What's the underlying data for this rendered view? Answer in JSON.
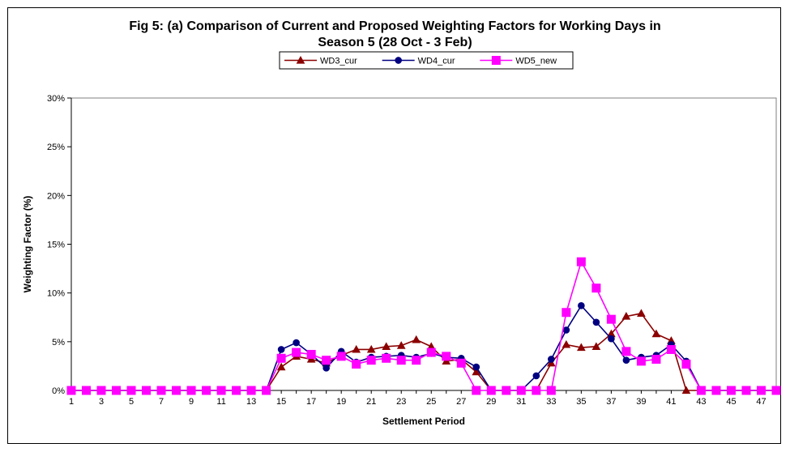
{
  "chart_data": {
    "type": "line",
    "title_lines": [
      "Fig 5: (a) Comparison of Current and Proposed Weighting Factors for Working Days in",
      "Season 5 (28 Oct - 3 Feb)"
    ],
    "xlabel": "Settlement Period",
    "ylabel": "Weighting Factor (%)",
    "ylim": [
      0,
      30
    ],
    "yticks": [
      0,
      5,
      10,
      15,
      20,
      25,
      30
    ],
    "ytick_labels": [
      "0%",
      "5%",
      "10%",
      "15%",
      "20%",
      "25%",
      "30%"
    ],
    "x": [
      1,
      2,
      3,
      4,
      5,
      6,
      7,
      8,
      9,
      10,
      11,
      12,
      13,
      14,
      15,
      16,
      17,
      18,
      19,
      20,
      21,
      22,
      23,
      24,
      25,
      26,
      27,
      28,
      29,
      30,
      31,
      32,
      33,
      34,
      35,
      36,
      37,
      38,
      39,
      40,
      41,
      42,
      43,
      44,
      45,
      46,
      47,
      48
    ],
    "xtick_labels": [
      "1",
      "3",
      "5",
      "7",
      "9",
      "11",
      "13",
      "15",
      "17",
      "19",
      "21",
      "23",
      "25",
      "27",
      "29",
      "31",
      "33",
      "35",
      "37",
      "39",
      "41",
      "43",
      "45",
      "47"
    ],
    "grid": false,
    "legend_position": "top-center",
    "series": [
      {
        "name": "WD3_cur",
        "color": "#8B0000",
        "marker": "triangle",
        "values": [
          0,
          0,
          0,
          0,
          0,
          0,
          0,
          0,
          0,
          0,
          0,
          0,
          0,
          0,
          2.4,
          3.5,
          3.2,
          2.8,
          3.6,
          4.2,
          4.2,
          4.5,
          4.6,
          5.2,
          4.5,
          3.0,
          3.2,
          1.9,
          0,
          0,
          0,
          0,
          2.8,
          4.7,
          4.4,
          4.5,
          5.8,
          7.6,
          7.9,
          5.8,
          5.1,
          0,
          0,
          0,
          0,
          0,
          0,
          0
        ]
      },
      {
        "name": "WD4_cur",
        "color": "#000080",
        "marker": "circle",
        "values": [
          0,
          0,
          0,
          0,
          0,
          0,
          0,
          0,
          0,
          0,
          0,
          0,
          0,
          0,
          4.2,
          4.9,
          3.7,
          2.3,
          4.0,
          2.9,
          3.4,
          3.5,
          3.6,
          3.4,
          3.8,
          3.4,
          3.3,
          2.4,
          0,
          0,
          0,
          1.5,
          3.2,
          6.2,
          8.7,
          7.0,
          5.3,
          3.1,
          3.4,
          3.6,
          4.7,
          3.0,
          0,
          0,
          0,
          0,
          0,
          0
        ]
      },
      {
        "name": "WD5_new",
        "color": "#FF00FF",
        "marker": "square",
        "values": [
          0,
          0,
          0,
          0,
          0,
          0,
          0,
          0,
          0,
          0,
          0,
          0,
          0,
          0,
          3.3,
          3.9,
          3.7,
          3.1,
          3.5,
          2.7,
          3.1,
          3.3,
          3.1,
          3.1,
          3.9,
          3.5,
          2.8,
          0,
          0,
          0,
          0,
          0,
          0,
          8.0,
          13.2,
          10.5,
          7.3,
          4.0,
          3.0,
          3.2,
          4.2,
          2.7,
          0,
          0,
          0,
          0,
          0,
          0
        ]
      }
    ]
  }
}
